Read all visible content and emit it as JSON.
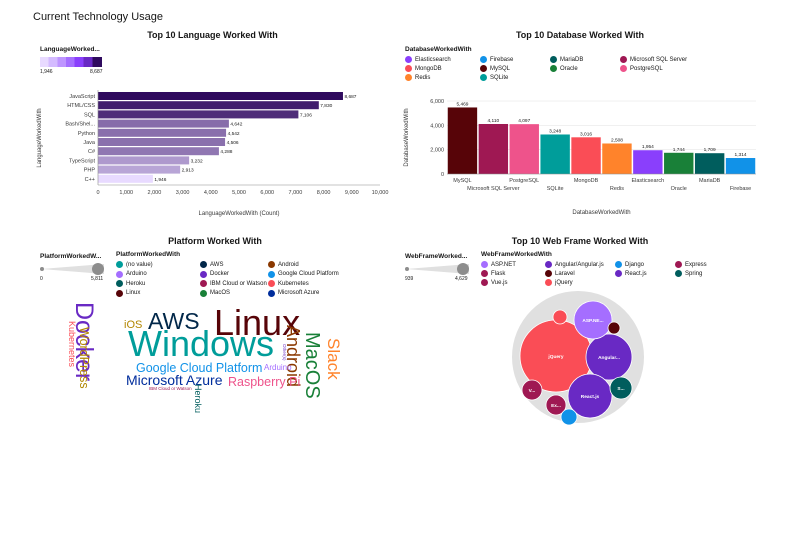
{
  "dashboard": {
    "title": "Current Technology Usage"
  },
  "colors": {
    "purple_dark": "#2f0a5e",
    "purple_light": "#e8daff"
  },
  "chart_data": [
    {
      "type": "bar",
      "orientation": "horizontal",
      "title": "Top 10 Language Worked With",
      "xlabel": "LanguageWorkedWith (Count)",
      "ylabel": "LanguageWorkedWith",
      "legend_title": "LanguageWorked...",
      "legend_min": "1,946",
      "legend_max": "8,687",
      "xlim": [
        0,
        10000
      ],
      "xticks": [
        "0",
        "1,000",
        "2,000",
        "3,000",
        "4,000",
        "5,000",
        "6,000",
        "7,000",
        "8,000",
        "9,000",
        "10,000"
      ],
      "categories": [
        "JavaScript",
        "HTML/CSS",
        "SQL",
        "Bash/Shel...",
        "Python",
        "Java",
        "C#",
        "TypeScript",
        "PHP",
        "C++"
      ],
      "values": [
        8687,
        7830,
        7106,
        4642,
        4542,
        4506,
        4288,
        3232,
        2913,
        1946
      ],
      "value_labels": [
        "8,687",
        "7,830",
        "7,106",
        "4,642",
        "4,542",
        "4,506",
        "4,288",
        "3,232",
        "2,913",
        "1,946"
      ]
    },
    {
      "type": "bar",
      "title": "Top 10 Database Worked With",
      "xlabel": "DatabaseWorkedWith",
      "ylabel": "DatabaseWorkedWith",
      "legend_title": "DatabaseWorkedWith",
      "ylim": [
        0,
        6000
      ],
      "yticks": [
        "0",
        "2,000",
        "4,000",
        "6,000"
      ],
      "categories": [
        "MySQL",
        "Microsoft SQL Server",
        "PostgreSQL",
        "SQLite",
        "MongoDB",
        "Redis",
        "Elasticsearch",
        "Oracle",
        "MariaDB",
        "Firebase"
      ],
      "values": [
        5469,
        4110,
        4097,
        3248,
        3016,
        2508,
        1954,
        1744,
        1709,
        1314
      ],
      "value_labels": [
        "5,469",
        "4,110",
        "4,097",
        "3,248",
        "3,016",
        "2,508",
        "1,954",
        "1,744",
        "1,709",
        "1,314"
      ],
      "colors": [
        "#570408",
        "#9f1853",
        "#ee538b",
        "#009d9a",
        "#fa4d56",
        "#ff832b",
        "#8a3ffc",
        "#198038",
        "#005d5d",
        "#1192e8"
      ],
      "legend": [
        {
          "label": "Elasticsearch",
          "color": "#8a3ffc"
        },
        {
          "label": "Firebase",
          "color": "#1192e8"
        },
        {
          "label": "MariaDB",
          "color": "#005d5d"
        },
        {
          "label": "Microsoft SQL Server",
          "color": "#9f1853"
        },
        {
          "label": "MongoDB",
          "color": "#fa4d56"
        },
        {
          "label": "MySQL",
          "color": "#570408"
        },
        {
          "label": "Oracle",
          "color": "#198038"
        },
        {
          "label": "PostgreSQL",
          "color": "#ee538b"
        },
        {
          "label": "Redis",
          "color": "#ff832b"
        },
        {
          "label": "SQLite",
          "color": "#009d9a"
        }
      ]
    },
    {
      "type": "wordcloud",
      "title": "Platform Worked With",
      "size_legend_title": "PlatformWorkedW...",
      "size_legend_min": "0",
      "size_legend_max": "5,811",
      "legend_title": "PlatformWorkedWith",
      "legend": [
        {
          "label": "(no value)",
          "color": "#009d9a"
        },
        {
          "label": "AWS",
          "color": "#012749"
        },
        {
          "label": "Android",
          "color": "#8a3800"
        },
        {
          "label": "Arduino",
          "color": "#a56eff"
        },
        {
          "label": "Docker",
          "color": "#6929c4"
        },
        {
          "label": "Google Cloud Platform",
          "color": "#1192e8"
        },
        {
          "label": "Heroku",
          "color": "#005d5d"
        },
        {
          "label": "IBM Cloud or Watson",
          "color": "#9f1853"
        },
        {
          "label": "Kubernetes",
          "color": "#fa4d56"
        },
        {
          "label": "Linux",
          "color": "#570408"
        },
        {
          "label": "MacOS",
          "color": "#198038"
        },
        {
          "label": "Microsoft Azure",
          "color": "#002d9c"
        }
      ],
      "words": [
        {
          "text": "Windows",
          "color": "#009d9a"
        },
        {
          "text": "Linux",
          "color": "#570408"
        },
        {
          "text": "Docker",
          "color": "#6929c4"
        },
        {
          "text": "AWS",
          "color": "#012749"
        },
        {
          "text": "Android",
          "color": "#8a3800"
        },
        {
          "text": "MacOS",
          "color": "#198038"
        },
        {
          "text": "Slack",
          "color": "#ff832b"
        },
        {
          "text": "Google Cloud Platform",
          "color": "#1192e8"
        },
        {
          "text": "Microsoft Azure",
          "color": "#002d9c"
        },
        {
          "text": "Raspberry Pi",
          "color": "#ee538b"
        },
        {
          "text": "WordPress",
          "color": "#b28600"
        },
        {
          "text": "Kubernetes",
          "color": "#fa4d56"
        },
        {
          "text": "Heroku",
          "color": "#005d5d"
        },
        {
          "text": "iOS",
          "color": "#b28600"
        },
        {
          "text": "Arduino",
          "color": "#a56eff"
        },
        {
          "text": "Other(s)",
          "color": "#6929c4"
        },
        {
          "text": "IBM Cloud or Watson",
          "color": "#9f1853"
        }
      ]
    },
    {
      "type": "bubble",
      "title": "Top 10 Web Frame Worked With",
      "size_legend_title": "WebFrameWorked...",
      "size_legend_min": "939",
      "size_legend_max": "4,629",
      "legend_title": "WebFrameWorkedWith",
      "legend": [
        {
          "label": "ASP.NET",
          "color": "#a56eff"
        },
        {
          "label": "Angular/Angular.js",
          "color": "#6929c4"
        },
        {
          "label": "Django",
          "color": "#1192e8"
        },
        {
          "label": "Express",
          "color": "#9f1853"
        },
        {
          "label": "Flask",
          "color": "#9f1853"
        },
        {
          "label": "Laravel",
          "color": "#570408"
        },
        {
          "label": "React.js",
          "color": "#6929c4"
        },
        {
          "label": "Spring",
          "color": "#005d5d"
        },
        {
          "label": "Vue.js",
          "color": "#9f1853"
        },
        {
          "label": "jQuery",
          "color": "#fa4d56"
        }
      ],
      "bubbles": [
        {
          "label": "jQuery",
          "color": "#fa4d56"
        },
        {
          "label": "Angular...",
          "color": "#6929c4"
        },
        {
          "label": "React.js",
          "color": "#6929c4"
        },
        {
          "label": "ASP.NE...",
          "color": "#a56eff"
        },
        {
          "label": "Ex...",
          "color": "#9f1853"
        },
        {
          "label": "V...",
          "color": "#9f1853"
        },
        {
          "label": "S...",
          "color": "#005d5d"
        },
        {
          "label": "",
          "color": "#570408"
        },
        {
          "label": "",
          "color": "#fa4d56"
        },
        {
          "label": "",
          "color": "#1192e8"
        }
      ]
    }
  ]
}
